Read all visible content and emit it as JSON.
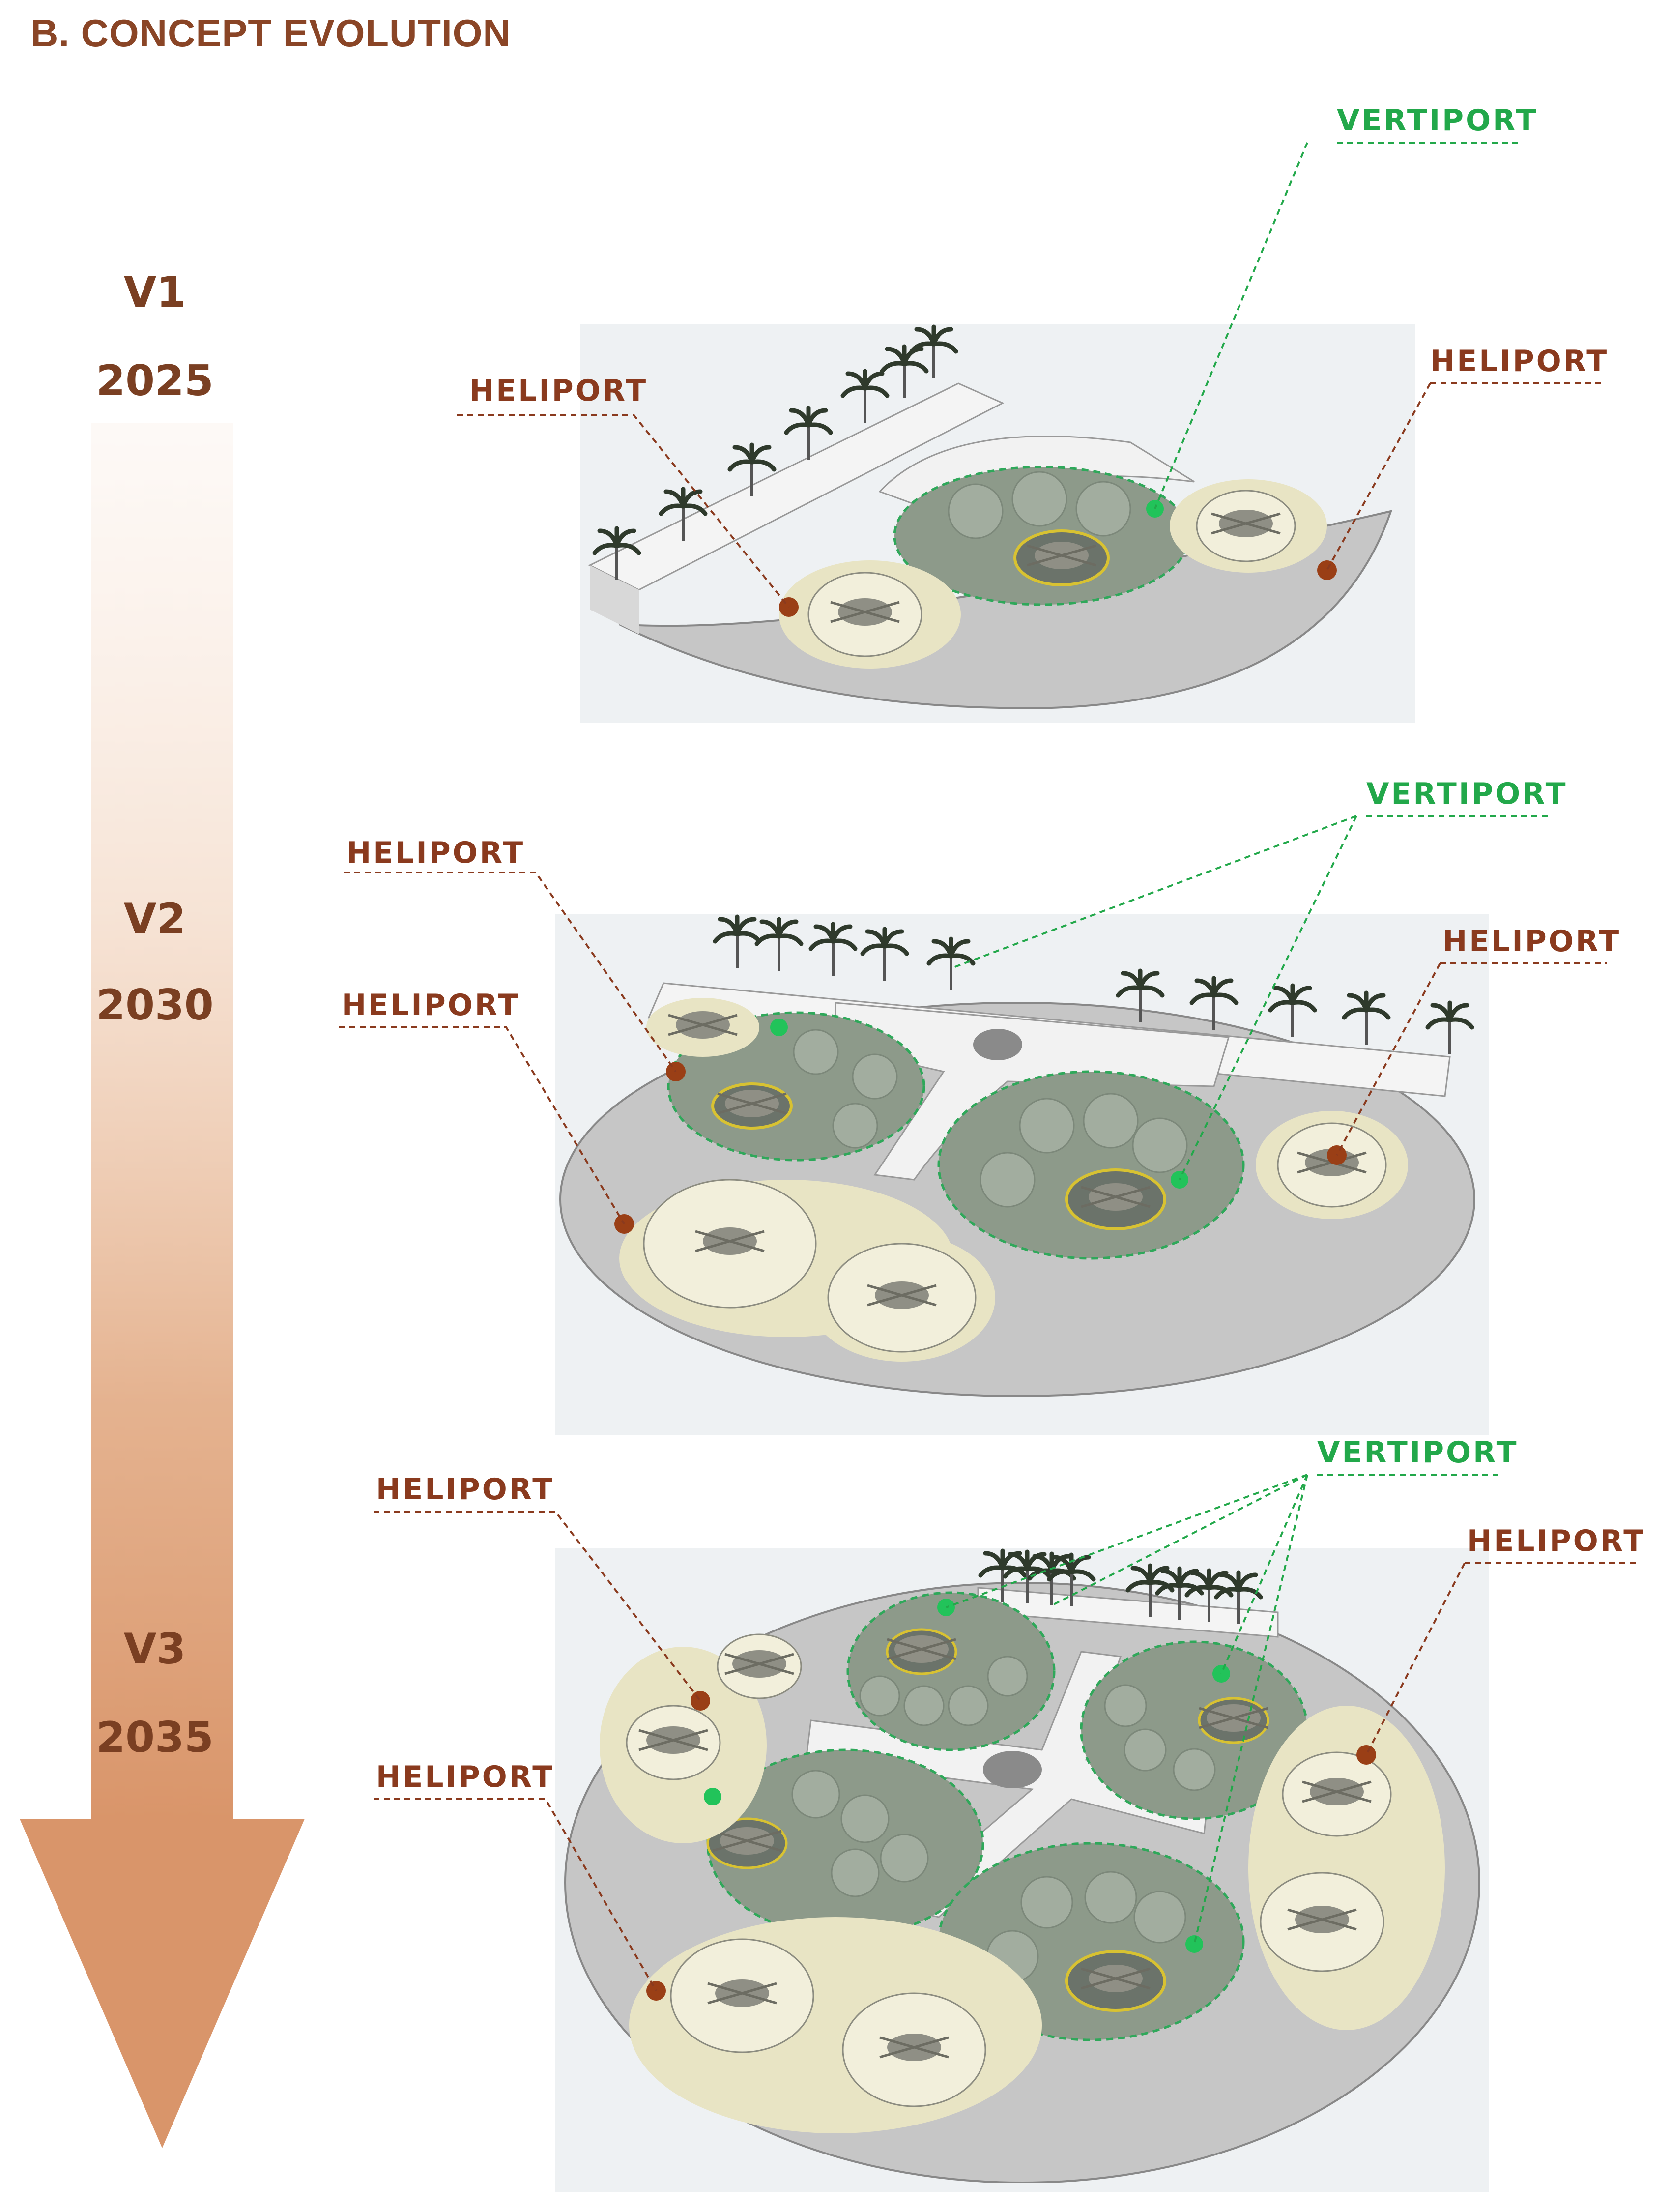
{
  "title": "B. CONCEPT EVOLUTION",
  "colors": {
    "title": "#8a4526",
    "stage_text": "#7a3f22",
    "heliport": "#8a3a1e",
    "vertiport": "#22a84a",
    "arrow": "#d9956a",
    "pad_heliport": "#e8e4c4",
    "pad_vertiport": "#8d9a8a",
    "ground": "#cfcfcf"
  },
  "stages": [
    {
      "version": "V1",
      "year": "2025"
    },
    {
      "version": "V2",
      "year": "2030"
    },
    {
      "version": "V3",
      "year": "2035"
    }
  ],
  "callouts": {
    "heliport": "HELIPORT",
    "vertiport": "VERTIPORT"
  }
}
